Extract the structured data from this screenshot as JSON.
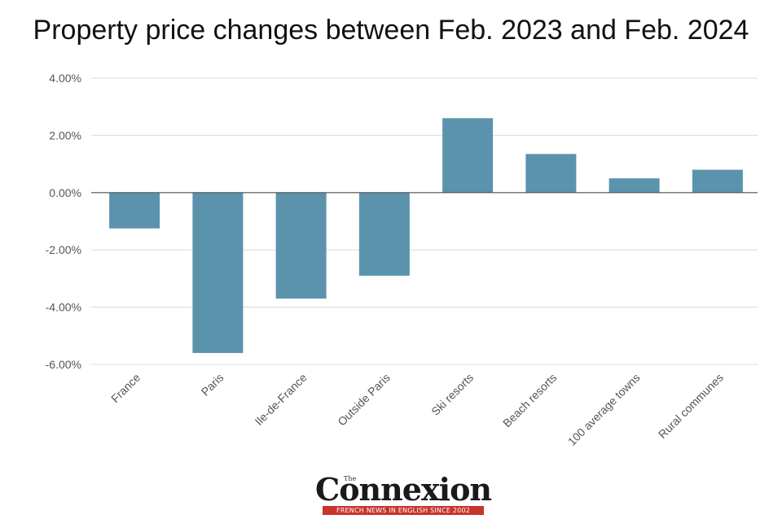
{
  "title": "Property price changes between Feb. 2023 and Feb. 2024",
  "chart_data": {
    "type": "bar",
    "title": "Property price changes between Feb. 2023 and Feb. 2024",
    "categories": [
      "France",
      "Paris",
      "Ile-de-France",
      "Outside Paris",
      "Ski resorts",
      "Beach resorts",
      "100 average towns",
      "Rural communes"
    ],
    "values": [
      -1.25,
      -5.6,
      -3.7,
      -2.9,
      2.6,
      1.35,
      0.5,
      0.8
    ],
    "ylim": [
      -6,
      4
    ],
    "yticks": [
      4,
      2,
      0,
      -2,
      -4,
      -6
    ],
    "ytick_labels": [
      "4.00%",
      "2.00%",
      "0.00%",
      "-2.00%",
      "-4.00%",
      "-6.00%"
    ],
    "xlabel": "",
    "ylabel": "",
    "grid": true,
    "bar_color": "#5b93ad"
  },
  "logo": {
    "the": "The",
    "name": "Connexion",
    "tagline": "FRENCH NEWS IN ENGLISH SINCE 2002"
  }
}
